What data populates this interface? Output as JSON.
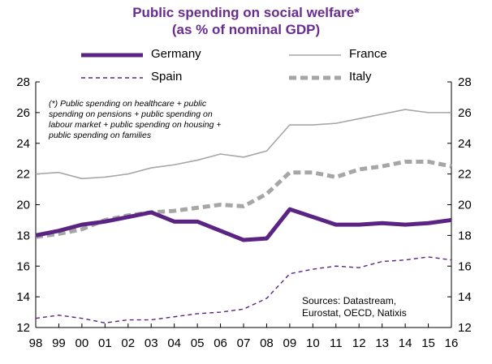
{
  "chart_data": {
    "type": "line",
    "title": "Public spending on social welfare*",
    "subtitle": "(as % of nominal GDP)",
    "categories": [
      "98",
      "99",
      "00",
      "01",
      "02",
      "03",
      "04",
      "05",
      "06",
      "07",
      "08",
      "09",
      "10",
      "11",
      "12",
      "13",
      "14",
      "15",
      "16"
    ],
    "ylim": [
      12,
      28
    ],
    "yticks": [
      12,
      14,
      16,
      18,
      20,
      22,
      24,
      26,
      28
    ],
    "series": [
      {
        "name": "Germany",
        "color": "#5c2482",
        "style": "solid-thick",
        "values": [
          18.0,
          18.3,
          18.7,
          18.9,
          19.2,
          19.5,
          18.9,
          18.9,
          18.3,
          17.7,
          17.8,
          19.7,
          19.2,
          18.7,
          18.7,
          18.8,
          18.7,
          18.8,
          19.0
        ]
      },
      {
        "name": "France",
        "color": "#a6a6a6",
        "style": "solid-thin",
        "values": [
          22.0,
          22.1,
          21.7,
          21.8,
          22.0,
          22.4,
          22.6,
          22.9,
          23.3,
          23.1,
          23.5,
          25.2,
          25.2,
          25.3,
          25.6,
          25.9,
          26.2,
          26.0,
          26.0
        ]
      },
      {
        "name": "Spain",
        "color": "#5c2482",
        "style": "dashed-thin",
        "values": [
          12.6,
          12.8,
          12.6,
          12.3,
          12.5,
          12.5,
          12.7,
          12.9,
          13.0,
          13.2,
          13.9,
          15.5,
          15.8,
          16.0,
          15.9,
          16.3,
          16.4,
          16.6,
          16.4
        ]
      },
      {
        "name": "Italy",
        "color": "#a6a6a6",
        "style": "dashed-thick",
        "values": [
          17.9,
          18.1,
          18.4,
          19.0,
          19.3,
          19.5,
          19.6,
          19.8,
          20.0,
          19.9,
          20.7,
          22.1,
          22.1,
          21.8,
          22.3,
          22.5,
          22.8,
          22.8,
          22.5
        ]
      }
    ],
    "legend": {
      "placement": "top"
    },
    "footnote": [
      "(*) Public spending on healthcare + public",
      "spending on pensions + public spending on",
      "labour market + public spending on housing +",
      "public spending on families"
    ],
    "sources": [
      "Sources: Datastream,",
      "Eurostat, OECD, Natixis"
    ]
  }
}
